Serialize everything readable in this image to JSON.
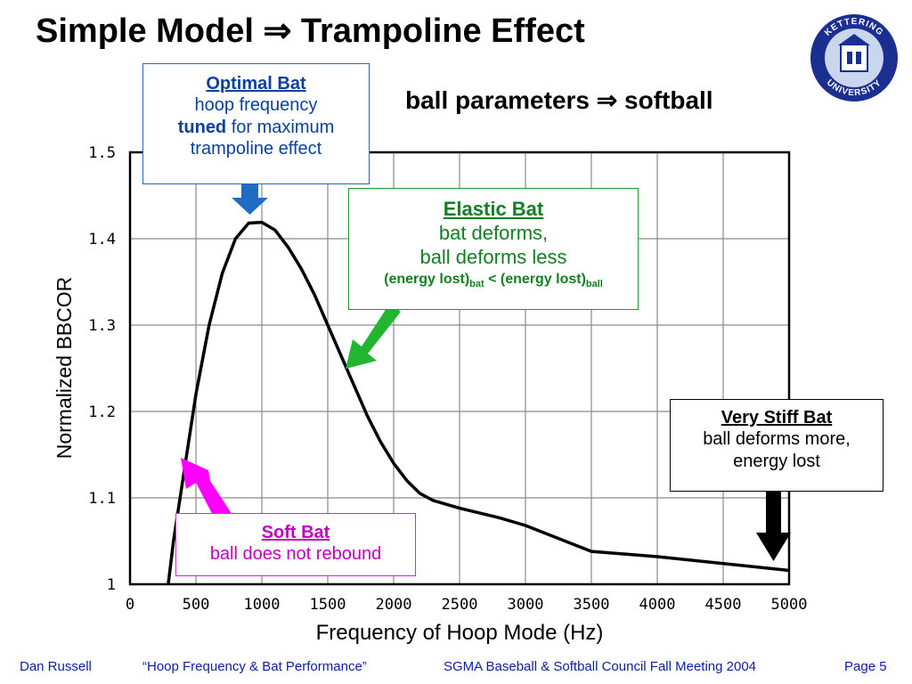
{
  "title_main": "Simple Model",
  "title_arrow": "⇒",
  "title_rest": "Trampoline Effect",
  "subtitle_main": "ball parameters",
  "subtitle_arrow": "⇒",
  "subtitle_rest": "softball",
  "logo": {
    "text_top": "KETTERING",
    "text_bottom": "UNIVERSITY",
    "colors": {
      "ring": "#1a2f8f",
      "fill": "#c9d6ee"
    }
  },
  "notes": {
    "optimal": {
      "head": "Optimal Bat",
      "line1": "hoop frequency",
      "bold": "tuned",
      "line2_rest": " for maximum",
      "line3": "trampoline effect",
      "color": "#1f6cc4"
    },
    "elastic": {
      "head": "Elastic Bat",
      "line1": "bat deforms,",
      "line2": "ball deforms less",
      "eq_a": "(energy lost)",
      "sub_a": "bat",
      "eq_op": " < ",
      "eq_b": "(energy lost)",
      "sub_b": "ball",
      "color": "#1b9a2c"
    },
    "stiff": {
      "head": "Very Stiff Bat",
      "line1": "ball deforms more,",
      "line2": "energy lost",
      "color": "#000000"
    },
    "soft": {
      "head": "Soft Bat",
      "line1": "ball does not rebound",
      "color": "#ff00ff"
    }
  },
  "chart_data": {
    "type": "line",
    "xlabel": "Frequency of Hoop Mode (Hz)",
    "ylabel": "Normalized BBCOR",
    "xlim": [
      0,
      5000
    ],
    "ylim": [
      1,
      1.5
    ],
    "xticks": [
      0,
      500,
      1000,
      1500,
      2000,
      2500,
      3000,
      3500,
      4000,
      4500,
      5000
    ],
    "yticks": [
      1,
      1.1,
      1.2,
      1.3,
      1.4,
      1.5
    ],
    "grid": true,
    "series": [
      {
        "x": [
          290,
          330,
          380,
          430,
          500,
          600,
          700,
          800,
          900,
          1000,
          1100,
          1200,
          1300,
          1400,
          1500,
          1600,
          1700,
          1800,
          1900,
          2000,
          2100,
          2200,
          2300,
          2500,
          2800,
          3000,
          3300,
          3500,
          4000,
          4500,
          5000
        ],
        "y": [
          1.0,
          1.05,
          1.1,
          1.15,
          1.22,
          1.3,
          1.36,
          1.4,
          1.418,
          1.419,
          1.41,
          1.39,
          1.365,
          1.335,
          1.3,
          1.265,
          1.23,
          1.195,
          1.165,
          1.14,
          1.12,
          1.105,
          1.097,
          1.088,
          1.077,
          1.068,
          1.05,
          1.038,
          1.032,
          1.024,
          1.016
        ],
        "color": "#000000"
      }
    ]
  },
  "footer": {
    "author": "Dan Russell",
    "talk": "“Hoop Frequency & Bat Performance”",
    "meeting": "SGMA Baseball & Softball Council Fall Meeting 2004",
    "page": "Page 5"
  }
}
